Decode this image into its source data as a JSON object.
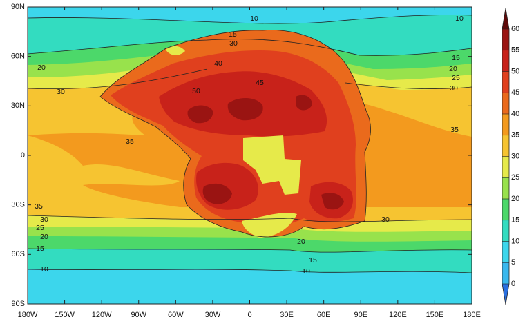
{
  "map": {
    "lat_labels": [
      "90N",
      "60N",
      "30N",
      "0",
      "30S",
      "60S",
      "90S"
    ],
    "lon_labels": [
      "180W",
      "150W",
      "120W",
      "90W",
      "60W",
      "30W",
      "0",
      "30E",
      "60E",
      "90E",
      "120E",
      "150E",
      "180E"
    ],
    "contour_labels": [
      "10",
      "10",
      "10",
      "10",
      "15",
      "15",
      "15",
      "15",
      "20",
      "20",
      "20",
      "20",
      "25",
      "25",
      "30",
      "30",
      "30",
      "30",
      "30",
      "35",
      "35",
      "35",
      "50",
      "45",
      "40"
    ],
    "colorbar": {
      "ticks": [
        0,
        5,
        10,
        15,
        20,
        25,
        30,
        35,
        40,
        45,
        50,
        55,
        60
      ],
      "colors": [
        "#2a6fe0",
        "#39b8ee",
        "#3cd6ec",
        "#33dcc0",
        "#4cd86a",
        "#98e24c",
        "#e6ea4a",
        "#f6c431",
        "#f39a1e",
        "#ea6a1c",
        "#e0401e",
        "#c8221a",
        "#9a1412",
        "#5e0a0a"
      ]
    }
  }
}
